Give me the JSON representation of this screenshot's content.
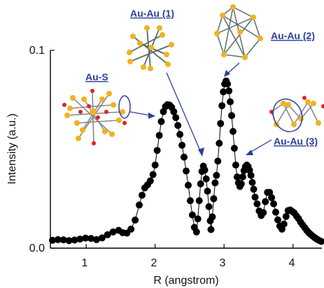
{
  "chart_data": {
    "type": "scatter",
    "title": "",
    "xlabel": "R (angstrom)",
    "ylabel": "Intensity (a.u.)",
    "xlim": [
      0.48,
      4.42
    ],
    "ylim": [
      0.0,
      0.1
    ],
    "x_ticks": [
      {
        "value": 1,
        "label": "1"
      },
      {
        "value": 2,
        "label": "2"
      },
      {
        "value": 3,
        "label": "3"
      },
      {
        "value": 4,
        "label": "4"
      }
    ],
    "y_ticks": [
      {
        "value": 0.0,
        "label": "0.0"
      },
      {
        "value": 0.1,
        "label": "0.1"
      }
    ],
    "grid": false,
    "marker_color": "#000000",
    "line_color": "#000000",
    "annotation_color": "#2d3f9b",
    "series": [
      {
        "points": [
          [
            0.51,
            0.004
          ],
          [
            0.59,
            0.0043
          ],
          [
            0.67,
            0.0042
          ],
          [
            0.75,
            0.0038
          ],
          [
            0.83,
            0.0041
          ],
          [
            0.91,
            0.0046
          ],
          [
            0.99,
            0.0051
          ],
          [
            1.07,
            0.0049
          ],
          [
            1.15,
            0.0043
          ],
          [
            1.23,
            0.0052
          ],
          [
            1.31,
            0.0068
          ],
          [
            1.39,
            0.0082
          ],
          [
            1.47,
            0.009
          ],
          [
            1.53,
            0.0078
          ],
          [
            1.59,
            0.0076
          ],
          [
            1.65,
            0.0096
          ],
          [
            1.71,
            0.0142
          ],
          [
            1.77,
            0.0218
          ],
          [
            1.81,
            0.0268
          ],
          [
            1.85,
            0.0305
          ],
          [
            1.89,
            0.032
          ],
          [
            1.93,
            0.034
          ],
          [
            1.97,
            0.0372
          ],
          [
            2.0,
            0.042
          ],
          [
            2.03,
            0.0494
          ],
          [
            2.06,
            0.057
          ],
          [
            2.09,
            0.064
          ],
          [
            2.12,
            0.069
          ],
          [
            2.15,
            0.0716
          ],
          [
            2.18,
            0.0725
          ],
          [
            2.21,
            0.0723
          ],
          [
            2.24,
            0.0712
          ],
          [
            2.27,
            0.069
          ],
          [
            2.3,
            0.066
          ],
          [
            2.33,
            0.062
          ],
          [
            2.36,
            0.0575
          ],
          [
            2.39,
            0.052
          ],
          [
            2.42,
            0.046
          ],
          [
            2.45,
            0.039
          ],
          [
            2.48,
            0.0318
          ],
          [
            2.51,
            0.024
          ],
          [
            2.54,
            0.0168
          ],
          [
            2.57,
            0.0105
          ],
          [
            2.6,
            0.0082
          ],
          [
            2.62,
            0.0148
          ],
          [
            2.64,
            0.024
          ],
          [
            2.66,
            0.0325
          ],
          [
            2.68,
            0.0388
          ],
          [
            2.7,
            0.0415
          ],
          [
            2.72,
            0.0395
          ],
          [
            2.74,
            0.035
          ],
          [
            2.76,
            0.0288
          ],
          [
            2.78,
            0.021
          ],
          [
            2.8,
            0.0138
          ],
          [
            2.81,
            0.0094
          ],
          [
            2.83,
            0.0158
          ],
          [
            2.85,
            0.025
          ],
          [
            2.87,
            0.033
          ],
          [
            2.89,
            0.0368
          ],
          [
            2.91,
            0.044
          ],
          [
            2.93,
            0.053
          ],
          [
            2.95,
            0.063
          ],
          [
            2.97,
            0.072
          ],
          [
            2.99,
            0.079
          ],
          [
            3.01,
            0.083
          ],
          [
            3.03,
            0.0845
          ],
          [
            3.05,
            0.083
          ],
          [
            3.07,
            0.0795
          ],
          [
            3.09,
            0.074
          ],
          [
            3.11,
            0.067
          ],
          [
            3.13,
            0.059
          ],
          [
            3.15,
            0.0505
          ],
          [
            3.17,
            0.042
          ],
          [
            3.19,
            0.036
          ],
          [
            3.21,
            0.033
          ],
          [
            3.23,
            0.0312
          ],
          [
            3.25,
            0.0325
          ],
          [
            3.27,
            0.036
          ],
          [
            3.29,
            0.0392
          ],
          [
            3.31,
            0.0412
          ],
          [
            3.33,
            0.042
          ],
          [
            3.35,
            0.0412
          ],
          [
            3.37,
            0.0394
          ],
          [
            3.39,
            0.0368
          ],
          [
            3.41,
            0.0332
          ],
          [
            3.43,
            0.0298
          ],
          [
            3.45,
            0.0258
          ],
          [
            3.48,
            0.0224
          ],
          [
            3.51,
            0.0188
          ],
          [
            3.54,
            0.0165
          ],
          [
            3.57,
            0.018
          ],
          [
            3.6,
            0.0235
          ],
          [
            3.63,
            0.0282
          ],
          [
            3.66,
            0.0282
          ],
          [
            3.69,
            0.0255
          ],
          [
            3.72,
            0.0224
          ],
          [
            3.75,
            0.0182
          ],
          [
            3.78,
            0.0143
          ],
          [
            3.81,
            0.0112
          ],
          [
            3.84,
            0.0096
          ],
          [
            3.87,
            0.0122
          ],
          [
            3.9,
            0.016
          ],
          [
            3.93,
            0.019
          ],
          [
            3.96,
            0.0193
          ],
          [
            3.99,
            0.0185
          ],
          [
            4.02,
            0.0178
          ],
          [
            4.05,
            0.0163
          ],
          [
            4.08,
            0.015
          ],
          [
            4.11,
            0.0132
          ],
          [
            4.14,
            0.0118
          ],
          [
            4.17,
            0.0104
          ],
          [
            4.2,
            0.009
          ],
          [
            4.23,
            0.0078
          ],
          [
            4.26,
            0.0069
          ],
          [
            4.29,
            0.006
          ],
          [
            4.32,
            0.0052
          ],
          [
            4.35,
            0.0045
          ],
          [
            4.38,
            0.0039
          ],
          [
            4.41,
            0.0034
          ]
        ]
      }
    ],
    "annotations": [
      {
        "text": "Au-S"
      },
      {
        "text": "Au-Au (1)"
      },
      {
        "text": "Au-Au (2)"
      },
      {
        "text": "Au-Au (3)"
      }
    ]
  }
}
